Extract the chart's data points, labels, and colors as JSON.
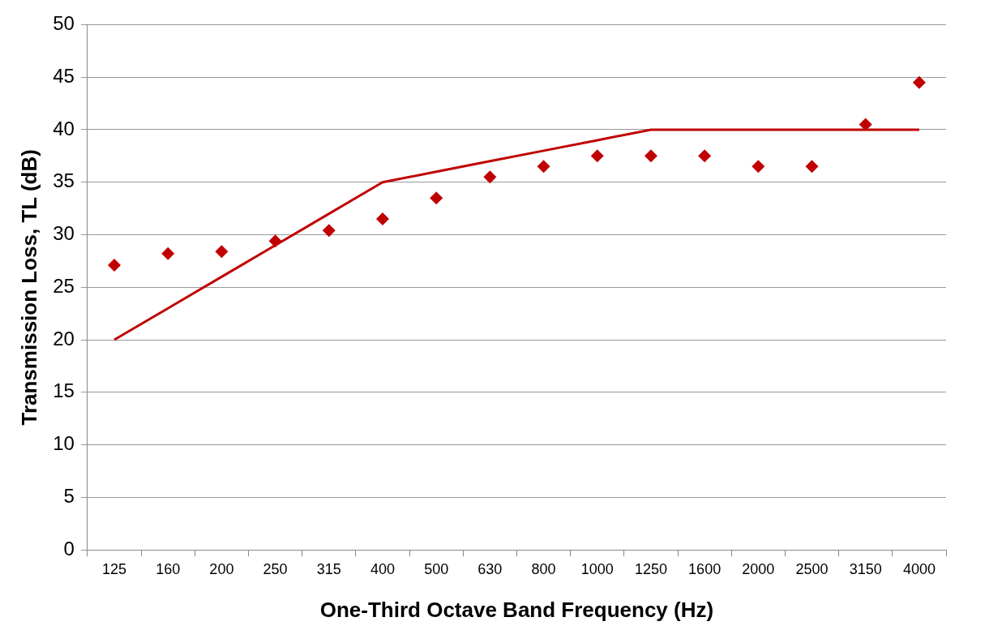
{
  "chart_data": {
    "type": "scatter",
    "xlabel": "One-Third Octave Band Frequency (Hz)",
    "ylabel": "Transmission Loss, TL (dB)",
    "categories": [
      "125",
      "160",
      "200",
      "250",
      "315",
      "400",
      "500",
      "630",
      "800",
      "1000",
      "1250",
      "1600",
      "2000",
      "2500",
      "3150",
      "4000"
    ],
    "series": [
      {
        "type": "line",
        "color": "#c00000",
        "marker": "none",
        "line_style": "solid",
        "values": [
          20,
          23,
          26,
          29,
          32,
          35,
          36,
          37,
          38,
          39,
          40,
          40,
          40,
          40,
          40,
          40
        ]
      },
      {
        "color": "#c00000",
        "marker": "diamond",
        "values": [
          27.1,
          28.2,
          28.4,
          29.4,
          30.4,
          31.5,
          33.5,
          35.5,
          36.5,
          37.5,
          37.5,
          37.5,
          36.5,
          36.5,
          40.5,
          44.5
        ]
      }
    ],
    "ylim": [
      0,
      50
    ],
    "yticks": [
      0,
      5,
      10,
      15,
      20,
      25,
      30,
      35,
      40,
      45,
      50
    ],
    "grid": "y",
    "legend": false
  }
}
